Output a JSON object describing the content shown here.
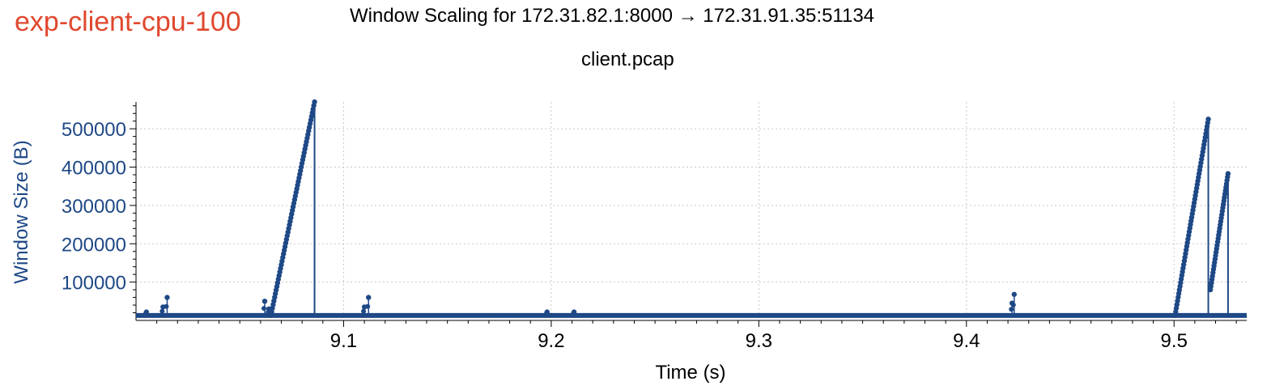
{
  "experiment_label": "exp-client-cpu-100",
  "chart_data": {
    "type": "line",
    "title": "Window Scaling for 172.31.82.1:8000 → 172.31.91.35:51134",
    "subtitle": "client.pcap",
    "xlabel": "Time (s)",
    "ylabel": "Window Size (B)",
    "xlim": [
      9.0,
      9.535
    ],
    "ylim": [
      0,
      570000
    ],
    "x_ticks": [
      9.1,
      9.2,
      9.3,
      9.4,
      9.5
    ],
    "x_tick_labels": [
      "9.1",
      "9.2",
      "9.3",
      "9.4",
      "9.5"
    ],
    "y_ticks": [
      100000,
      200000,
      300000,
      400000,
      500000
    ],
    "y_tick_labels": [
      "100000",
      "200000",
      "300000",
      "400000",
      "500000"
    ],
    "grid": true,
    "colors": {
      "series": "#1e4886",
      "label": "#e0482e"
    },
    "series": [
      {
        "baseline": 13000,
        "ramps": [
          {
            "t_start": 9.065,
            "t_end": 9.086,
            "w_start": 13000,
            "w_end": 570000,
            "points": 60
          },
          {
            "t_start": 9.5005,
            "t_end": 9.5165,
            "w_start": 13000,
            "w_end": 525000,
            "points": 55
          },
          {
            "t_start": 9.5175,
            "t_end": 9.526,
            "w_start": 80000,
            "w_end": 383000,
            "points": 35
          }
        ],
        "spikes": [
          {
            "t": 9.005,
            "w": 22000
          },
          {
            "t": 9.015,
            "w": 60000
          },
          {
            "t": 9.013,
            "w": 35000
          },
          {
            "t": 9.062,
            "w": 50000
          },
          {
            "t": 9.064,
            "w": 30000
          },
          {
            "t": 9.112,
            "w": 60000
          },
          {
            "t": 9.11,
            "w": 35000
          },
          {
            "t": 9.198,
            "w": 22000
          },
          {
            "t": 9.211,
            "w": 22000
          },
          {
            "t": 9.423,
            "w": 68000
          },
          {
            "t": 9.422,
            "w": 45000
          }
        ]
      }
    ]
  }
}
